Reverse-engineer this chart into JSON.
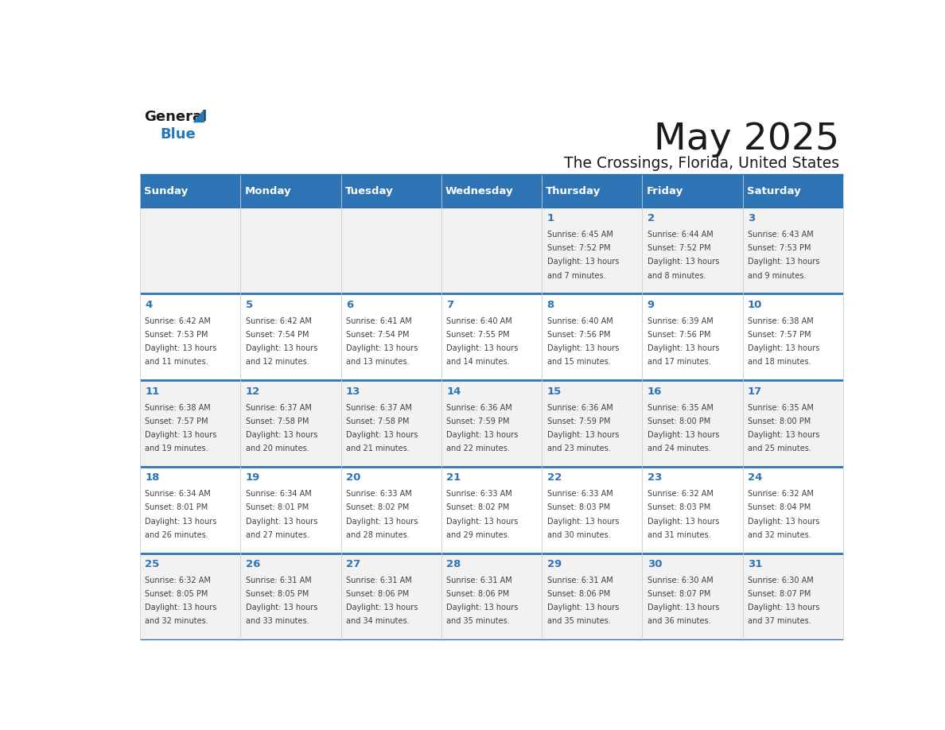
{
  "title": "May 2025",
  "subtitle": "The Crossings, Florida, United States",
  "header_bg": "#2E74B5",
  "header_text_color": "#FFFFFF",
  "day_names": [
    "Sunday",
    "Monday",
    "Tuesday",
    "Wednesday",
    "Thursday",
    "Friday",
    "Saturday"
  ],
  "row1_bg": "#F2F2F2",
  "row2_bg": "#FFFFFF",
  "cell_text_color": "#2E74B5",
  "info_text_color": "#404040",
  "border_color": "#2E74B5",
  "logo_general_color": "#1A1A1A",
  "logo_blue_color": "#2479B5",
  "days": [
    {
      "day": "",
      "sunrise": "",
      "sunset": "",
      "daylight": ""
    },
    {
      "day": "",
      "sunrise": "",
      "sunset": "",
      "daylight": ""
    },
    {
      "day": "",
      "sunrise": "",
      "sunset": "",
      "daylight": ""
    },
    {
      "day": "",
      "sunrise": "",
      "sunset": "",
      "daylight": ""
    },
    {
      "day": "1",
      "sunrise": "6:45 AM",
      "sunset": "7:52 PM",
      "daylight": "13 hours and 7 minutes."
    },
    {
      "day": "2",
      "sunrise": "6:44 AM",
      "sunset": "7:52 PM",
      "daylight": "13 hours and 8 minutes."
    },
    {
      "day": "3",
      "sunrise": "6:43 AM",
      "sunset": "7:53 PM",
      "daylight": "13 hours and 9 minutes."
    },
    {
      "day": "4",
      "sunrise": "6:42 AM",
      "sunset": "7:53 PM",
      "daylight": "13 hours and 11 minutes."
    },
    {
      "day": "5",
      "sunrise": "6:42 AM",
      "sunset": "7:54 PM",
      "daylight": "13 hours and 12 minutes."
    },
    {
      "day": "6",
      "sunrise": "6:41 AM",
      "sunset": "7:54 PM",
      "daylight": "13 hours and 13 minutes."
    },
    {
      "day": "7",
      "sunrise": "6:40 AM",
      "sunset": "7:55 PM",
      "daylight": "13 hours and 14 minutes."
    },
    {
      "day": "8",
      "sunrise": "6:40 AM",
      "sunset": "7:56 PM",
      "daylight": "13 hours and 15 minutes."
    },
    {
      "day": "9",
      "sunrise": "6:39 AM",
      "sunset": "7:56 PM",
      "daylight": "13 hours and 17 minutes."
    },
    {
      "day": "10",
      "sunrise": "6:38 AM",
      "sunset": "7:57 PM",
      "daylight": "13 hours and 18 minutes."
    },
    {
      "day": "11",
      "sunrise": "6:38 AM",
      "sunset": "7:57 PM",
      "daylight": "13 hours and 19 minutes."
    },
    {
      "day": "12",
      "sunrise": "6:37 AM",
      "sunset": "7:58 PM",
      "daylight": "13 hours and 20 minutes."
    },
    {
      "day": "13",
      "sunrise": "6:37 AM",
      "sunset": "7:58 PM",
      "daylight": "13 hours and 21 minutes."
    },
    {
      "day": "14",
      "sunrise": "6:36 AM",
      "sunset": "7:59 PM",
      "daylight": "13 hours and 22 minutes."
    },
    {
      "day": "15",
      "sunrise": "6:36 AM",
      "sunset": "7:59 PM",
      "daylight": "13 hours and 23 minutes."
    },
    {
      "day": "16",
      "sunrise": "6:35 AM",
      "sunset": "8:00 PM",
      "daylight": "13 hours and 24 minutes."
    },
    {
      "day": "17",
      "sunrise": "6:35 AM",
      "sunset": "8:00 PM",
      "daylight": "13 hours and 25 minutes."
    },
    {
      "day": "18",
      "sunrise": "6:34 AM",
      "sunset": "8:01 PM",
      "daylight": "13 hours and 26 minutes."
    },
    {
      "day": "19",
      "sunrise": "6:34 AM",
      "sunset": "8:01 PM",
      "daylight": "13 hours and 27 minutes."
    },
    {
      "day": "20",
      "sunrise": "6:33 AM",
      "sunset": "8:02 PM",
      "daylight": "13 hours and 28 minutes."
    },
    {
      "day": "21",
      "sunrise": "6:33 AM",
      "sunset": "8:02 PM",
      "daylight": "13 hours and 29 minutes."
    },
    {
      "day": "22",
      "sunrise": "6:33 AM",
      "sunset": "8:03 PM",
      "daylight": "13 hours and 30 minutes."
    },
    {
      "day": "23",
      "sunrise": "6:32 AM",
      "sunset": "8:03 PM",
      "daylight": "13 hours and 31 minutes."
    },
    {
      "day": "24",
      "sunrise": "6:32 AM",
      "sunset": "8:04 PM",
      "daylight": "13 hours and 32 minutes."
    },
    {
      "day": "25",
      "sunrise": "6:32 AM",
      "sunset": "8:05 PM",
      "daylight": "13 hours and 32 minutes."
    },
    {
      "day": "26",
      "sunrise": "6:31 AM",
      "sunset": "8:05 PM",
      "daylight": "13 hours and 33 minutes."
    },
    {
      "day": "27",
      "sunrise": "6:31 AM",
      "sunset": "8:06 PM",
      "daylight": "13 hours and 34 minutes."
    },
    {
      "day": "28",
      "sunrise": "6:31 AM",
      "sunset": "8:06 PM",
      "daylight": "13 hours and 35 minutes."
    },
    {
      "day": "29",
      "sunrise": "6:31 AM",
      "sunset": "8:06 PM",
      "daylight": "13 hours and 35 minutes."
    },
    {
      "day": "30",
      "sunrise": "6:30 AM",
      "sunset": "8:07 PM",
      "daylight": "13 hours and 36 minutes."
    },
    {
      "day": "31",
      "sunrise": "6:30 AM",
      "sunset": "8:07 PM",
      "daylight": "13 hours and 37 minutes."
    }
  ]
}
